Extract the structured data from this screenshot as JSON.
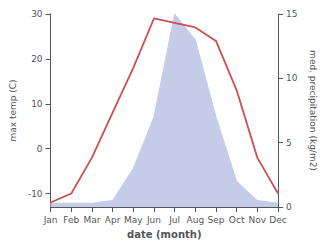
{
  "chart_data": {
    "type": "line",
    "xlabel": "date (month)",
    "ylabel": "max temp (C)",
    "y2label": "med. precipitation (kg/m2)",
    "categories": [
      "Jan",
      "Feb",
      "Mar",
      "Apr",
      "May",
      "Jun",
      "Jul",
      "Aug",
      "Sep",
      "Oct",
      "Nov",
      "Dec"
    ],
    "series": [
      {
        "type": "area",
        "axis": "y2",
        "color": "#c5cce8",
        "values": [
          0.3,
          0.3,
          0.3,
          0.5,
          3,
          7,
          15,
          13,
          7,
          2,
          0.5,
          0.3
        ]
      },
      {
        "type": "line",
        "color": "#cd4f4f",
        "values": [
          -12,
          -10,
          -2,
          8,
          18,
          29,
          28,
          27,
          24,
          13,
          -2,
          -10
        ]
      }
    ],
    "ylim": [
      -13,
      30
    ],
    "yticks": [
      -10,
      0,
      10,
      20,
      30
    ],
    "y2lim": [
      0,
      15
    ],
    "y2ticks": [
      0,
      5,
      10,
      15
    ],
    "grid": false
  }
}
